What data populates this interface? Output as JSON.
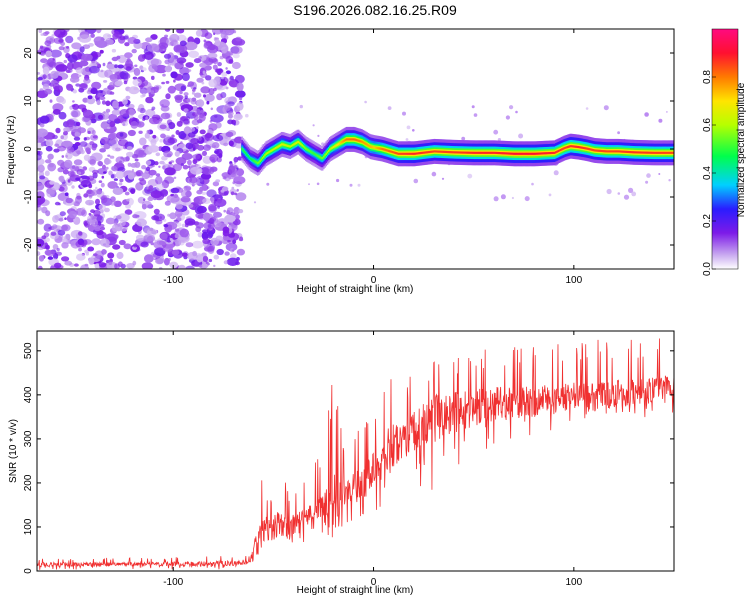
{
  "title": "S196.2026.082.16.25.R09",
  "chart_data": [
    {
      "type": "heatmap",
      "xlabel": "Height of straight line (km)",
      "ylabel": "Frequency (Hz)",
      "xlim": [
        -168,
        150
      ],
      "ylim": [
        -25,
        25
      ],
      "xticks": [
        -100,
        0,
        100
      ],
      "yticks": [
        -20,
        -10,
        0,
        10,
        20
      ],
      "colorbar": {
        "label": "Normalized spectral amplitude",
        "range": [
          0,
          1
        ],
        "ticks": [
          "0.0",
          "0.2",
          "0.4",
          "0.6",
          "0.8"
        ],
        "tick_values": [
          0,
          0.2,
          0.4,
          0.6,
          0.8
        ],
        "colors": [
          "#ffffff",
          "#c8a8f0",
          "#7d1be8",
          "#2a1cff",
          "#00d0ff",
          "#00ff4c",
          "#b6ff00",
          "#ffe400",
          "#ff7a00",
          "#ff1030",
          "#ff0a80"
        ]
      },
      "noise_region_x": [
        -168,
        -66
      ],
      "ridge": {
        "x": [
          -66,
          -62,
          -58,
          -54,
          -50,
          -46,
          -42,
          -38,
          -34,
          -30,
          -26,
          -22,
          -18,
          -14,
          -10,
          -6,
          -2,
          0,
          4,
          8,
          12,
          20,
          30,
          40,
          50,
          60,
          70,
          80,
          90,
          95,
          98,
          102,
          106,
          110,
          116,
          122,
          130,
          140,
          150
        ],
        "y": [
          0,
          -2,
          -3,
          -1,
          0,
          1,
          0.5,
          1.5,
          0,
          -1,
          -2,
          0,
          1,
          2,
          2,
          1.5,
          0.5,
          0.3,
          0,
          -0.5,
          -1,
          -1,
          -0.5,
          -0.7,
          -0.8,
          -0.8,
          -1,
          -1,
          -0.8,
          0.2,
          0.6,
          0.4,
          0.1,
          -0.3,
          -0.5,
          -0.5,
          -0.7,
          -0.8,
          -0.8
        ],
        "amplitude": [
          0.5,
          0.45,
          0.55,
          0.6,
          0.62,
          0.65,
          0.6,
          0.65,
          0.55,
          0.5,
          0.55,
          0.62,
          0.7,
          0.8,
          0.82,
          0.78,
          0.75,
          0.72,
          0.8,
          0.82,
          0.85,
          0.88,
          0.85,
          0.86,
          0.88,
          0.88,
          0.9,
          0.9,
          0.88,
          0.85,
          0.87,
          0.88,
          0.86,
          0.85,
          0.85,
          0.86,
          0.87,
          0.86,
          0.85
        ]
      }
    },
    {
      "type": "line",
      "xlabel": "Height of straight line (km)",
      "ylabel": "SNR (10 * v/v)",
      "xlim": [
        -168,
        150
      ],
      "ylim": [
        0,
        545
      ],
      "xticks": [
        -100,
        0,
        100
      ],
      "yticks": [
        0,
        100,
        200,
        300,
        400,
        500
      ],
      "color": "#f03030",
      "series": [
        {
          "name": "SNR",
          "x": [
            -168,
            -150,
            -120,
            -90,
            -68,
            -62,
            -58,
            -54,
            -52,
            -48,
            -45,
            -42,
            -38,
            -32,
            -30,
            -26,
            -20,
            -18,
            -15,
            -10,
            -5,
            0,
            5,
            10,
            15,
            20,
            25,
            30,
            35,
            40,
            45,
            50,
            60,
            70,
            80,
            90,
            100,
            110,
            120,
            130,
            140,
            150
          ],
          "baseline": [
            15,
            15,
            15,
            16,
            18,
            22,
            60,
            100,
            90,
            105,
            110,
            95,
            110,
            125,
            120,
            140,
            150,
            160,
            175,
            190,
            200,
            225,
            260,
            285,
            300,
            320,
            335,
            345,
            355,
            360,
            365,
            370,
            380,
            380,
            385,
            390,
            395,
            395,
            400,
            405,
            410,
            415
          ],
          "upper": [
            28,
            30,
            30,
            32,
            35,
            40,
            215,
            200,
            180,
            210,
            230,
            200,
            190,
            210,
            270,
            255,
            450,
            465,
            280,
            300,
            350,
            395,
            430,
            470,
            440,
            460,
            475,
            485,
            490,
            495,
            500,
            505,
            510,
            515,
            515,
            520,
            520,
            525,
            525,
            530,
            535,
            540
          ],
          "lower": [
            2,
            3,
            2,
            3,
            4,
            4,
            20,
            40,
            30,
            45,
            50,
            40,
            60,
            70,
            60,
            80,
            60,
            90,
            100,
            110,
            120,
            130,
            140,
            150,
            160,
            180,
            190,
            140,
            200,
            220,
            240,
            260,
            280,
            300,
            310,
            320,
            330,
            335,
            340,
            345,
            350,
            360
          ]
        }
      ]
    }
  ]
}
